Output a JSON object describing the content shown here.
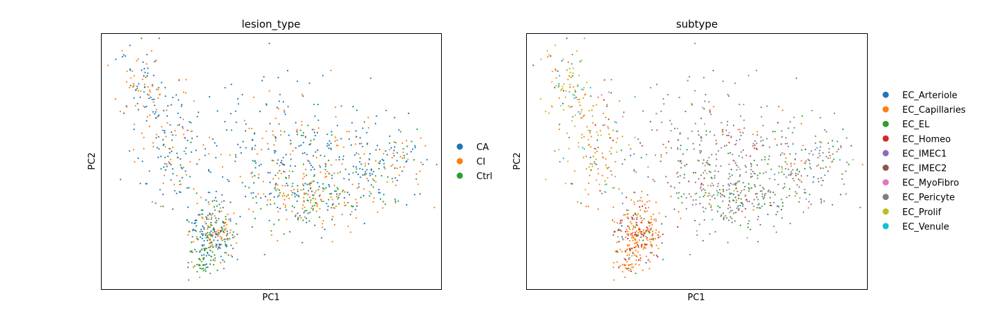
{
  "chart_data": [
    {
      "type": "scatter",
      "title": "lesion_type",
      "xlabel": "PC1",
      "ylabel": "PC2",
      "xticks": "none",
      "yticks": "none",
      "grid": false,
      "legend": {
        "placement": "right-outside",
        "entries": [
          {
            "label": "CA",
            "color": "#1f77b4"
          },
          {
            "label": "CI",
            "color": "#ff7f0e"
          },
          {
            "label": "Ctrl",
            "color": "#2ca02c"
          }
        ]
      }
    },
    {
      "type": "scatter",
      "title": "subtype",
      "xlabel": "PC1",
      "ylabel": "PC2",
      "xticks": "none",
      "yticks": "none",
      "grid": false,
      "legend": {
        "placement": "right-outside",
        "entries": [
          {
            "label": "EC_Arteriole",
            "color": "#1f77b4"
          },
          {
            "label": "EC_Capillaries",
            "color": "#ff7f0e"
          },
          {
            "label": "EC_EL",
            "color": "#2ca02c"
          },
          {
            "label": "EC_Homeo",
            "color": "#d62728"
          },
          {
            "label": "EC_IMEC1",
            "color": "#9467bd"
          },
          {
            "label": "EC_IMEC2",
            "color": "#8c564b"
          },
          {
            "label": "EC_MyoFibro",
            "color": "#e377c2"
          },
          {
            "label": "EC_Pericyte",
            "color": "#7f7f7f"
          },
          {
            "label": "EC_Prolif",
            "color": "#bcbd22"
          },
          {
            "label": "EC_Venule",
            "color": "#17becf"
          }
        ]
      }
    }
  ]
}
